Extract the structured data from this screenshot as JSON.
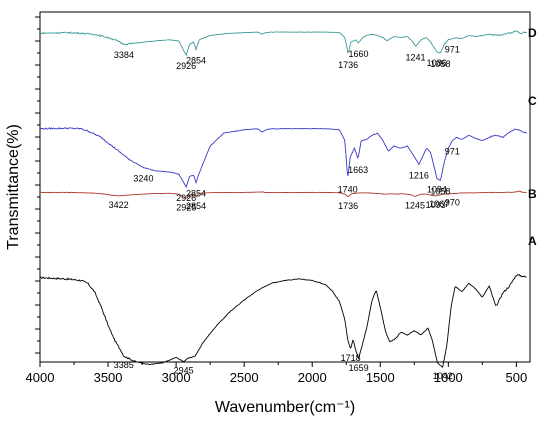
{
  "chart_data": {
    "type": "line",
    "xlabel": "Wavenumber(cm⁻¹)",
    "ylabel": "Transmittance(%)",
    "xlim": [
      4000,
      400
    ],
    "x_reversed": true,
    "x_ticks": [
      4000,
      3500,
      3000,
      2500,
      2000,
      1500,
      1000,
      500
    ],
    "y_tick_labels": false,
    "grid": false,
    "series": [
      {
        "name": "A",
        "color": "#000000",
        "baseline": 0.0,
        "points": [
          [
            4000,
            0.66
          ],
          [
            3800,
            0.65
          ],
          [
            3700,
            0.64
          ],
          [
            3650,
            0.62
          ],
          [
            3600,
            0.56
          ],
          [
            3550,
            0.45
          ],
          [
            3500,
            0.32
          ],
          [
            3450,
            0.21
          ],
          [
            3400,
            0.13
          ],
          [
            3385,
            0.1
          ],
          [
            3300,
            0.06
          ],
          [
            3200,
            0.04
          ],
          [
            3100,
            0.05
          ],
          [
            3000,
            0.09
          ],
          [
            2945,
            0.06
          ],
          [
            2920,
            0.08
          ],
          [
            2860,
            0.1
          ],
          [
            2800,
            0.2
          ],
          [
            2700,
            0.32
          ],
          [
            2600,
            0.42
          ],
          [
            2500,
            0.5
          ],
          [
            2400,
            0.57
          ],
          [
            2300,
            0.62
          ],
          [
            2200,
            0.64
          ],
          [
            2100,
            0.65
          ],
          [
            2000,
            0.64
          ],
          [
            1900,
            0.61
          ],
          [
            1850,
            0.56
          ],
          [
            1800,
            0.49
          ],
          [
            1760,
            0.36
          ],
          [
            1740,
            0.22
          ],
          [
            1718,
            0.15
          ],
          [
            1700,
            0.22
          ],
          [
            1680,
            0.14
          ],
          [
            1659,
            0.08
          ],
          [
            1640,
            0.15
          ],
          [
            1600,
            0.3
          ],
          [
            1560,
            0.5
          ],
          [
            1530,
            0.57
          ],
          [
            1500,
            0.45
          ],
          [
            1460,
            0.27
          ],
          [
            1430,
            0.2
          ],
          [
            1380,
            0.23
          ],
          [
            1350,
            0.27
          ],
          [
            1300,
            0.25
          ],
          [
            1250,
            0.28
          ],
          [
            1200,
            0.25
          ],
          [
            1150,
            0.3
          ],
          [
            1120,
            0.22
          ],
          [
            1080,
            0.05
          ],
          [
            1042,
            0.02
          ],
          [
            1010,
            0.18
          ],
          [
            980,
            0.45
          ],
          [
            950,
            0.6
          ],
          [
            900,
            0.56
          ],
          [
            850,
            0.62
          ],
          [
            800,
            0.58
          ],
          [
            750,
            0.52
          ],
          [
            700,
            0.6
          ],
          [
            650,
            0.45
          ],
          [
            600,
            0.55
          ],
          [
            550,
            0.6
          ],
          [
            500,
            0.68
          ],
          [
            450,
            0.67
          ],
          [
            420,
            0.66
          ]
        ],
        "peak_labels": [
          {
            "wn": "3385",
            "x": 3385
          },
          {
            "wn": "2945",
            "x": 2945
          },
          {
            "wn": "1718",
            "x": 1718
          },
          {
            "wn": "1659",
            "x": 1659
          },
          {
            "wn": "1042",
            "x": 1042
          }
        ]
      },
      {
        "name": "B",
        "color": "#b03a2e",
        "baseline": 0.0,
        "points": [
          [
            4000,
            0.9
          ],
          [
            3800,
            0.9
          ],
          [
            3650,
            0.89
          ],
          [
            3550,
            0.87
          ],
          [
            3480,
            0.84
          ],
          [
            3422,
            0.82
          ],
          [
            3350,
            0.84
          ],
          [
            3200,
            0.87
          ],
          [
            3050,
            0.88
          ],
          [
            2980,
            0.86
          ],
          [
            2925,
            0.76
          ],
          [
            2900,
            0.84
          ],
          [
            2870,
            0.86
          ],
          [
            2854,
            0.8
          ],
          [
            2830,
            0.88
          ],
          [
            2700,
            0.9
          ],
          [
            2500,
            0.9
          ],
          [
            2360,
            0.91
          ],
          [
            2340,
            0.895
          ],
          [
            2300,
            0.9
          ],
          [
            2100,
            0.9
          ],
          [
            1900,
            0.9
          ],
          [
            1800,
            0.89
          ],
          [
            1760,
            0.86
          ],
          [
            1736,
            0.8
          ],
          [
            1710,
            0.87
          ],
          [
            1650,
            0.89
          ],
          [
            1600,
            0.89
          ],
          [
            1540,
            0.88
          ],
          [
            1460,
            0.86
          ],
          [
            1420,
            0.87
          ],
          [
            1380,
            0.86
          ],
          [
            1340,
            0.87
          ],
          [
            1280,
            0.85
          ],
          [
            1245,
            0.81
          ],
          [
            1200,
            0.86
          ],
          [
            1160,
            0.86
          ],
          [
            1120,
            0.83
          ],
          [
            1093,
            0.82
          ],
          [
            1067,
            0.84
          ],
          [
            1040,
            0.86
          ],
          [
            1000,
            0.87
          ],
          [
            970,
            0.87
          ],
          [
            900,
            0.89
          ],
          [
            800,
            0.89
          ],
          [
            700,
            0.9
          ],
          [
            600,
            0.9
          ],
          [
            500,
            0.91
          ],
          [
            480,
            0.93
          ],
          [
            450,
            0.9
          ],
          [
            420,
            0.9
          ]
        ],
        "peak_labels": [
          {
            "wn": "3422",
            "x": 3422
          },
          {
            "wn": "2925",
            "x": 2925
          },
          {
            "wn": "2854",
            "x": 2854
          },
          {
            "wn": "1736",
            "x": 1736
          },
          {
            "wn": "1245",
            "x": 1245
          },
          {
            "wn": "1093",
            "x": 1093
          },
          {
            "wn": "1067",
            "x": 1067
          },
          {
            "wn": "970",
            "x": 970
          }
        ]
      },
      {
        "name": "C",
        "color": "#3838c8",
        "baseline": 0.0,
        "points": [
          [
            4000,
            0.66
          ],
          [
            3800,
            0.665
          ],
          [
            3700,
            0.66
          ],
          [
            3650,
            0.64
          ],
          [
            3550,
            0.58
          ],
          [
            3450,
            0.48
          ],
          [
            3350,
            0.38
          ],
          [
            3240,
            0.3
          ],
          [
            3150,
            0.27
          ],
          [
            3050,
            0.26
          ],
          [
            2980,
            0.24
          ],
          [
            2926,
            0.12
          ],
          [
            2900,
            0.22
          ],
          [
            2870,
            0.23
          ],
          [
            2854,
            0.16
          ],
          [
            2830,
            0.25
          ],
          [
            2750,
            0.5
          ],
          [
            2650,
            0.62
          ],
          [
            2500,
            0.65
          ],
          [
            2400,
            0.66
          ],
          [
            2370,
            0.63
          ],
          [
            2340,
            0.65
          ],
          [
            2300,
            0.66
          ],
          [
            2100,
            0.66
          ],
          [
            1900,
            0.66
          ],
          [
            1800,
            0.65
          ],
          [
            1760,
            0.55
          ],
          [
            1740,
            0.2
          ],
          [
            1720,
            0.4
          ],
          [
            1690,
            0.48
          ],
          [
            1663,
            0.38
          ],
          [
            1640,
            0.55
          ],
          [
            1600,
            0.56
          ],
          [
            1560,
            0.6
          ],
          [
            1520,
            0.62
          ],
          [
            1480,
            0.55
          ],
          [
            1440,
            0.45
          ],
          [
            1400,
            0.5
          ],
          [
            1350,
            0.48
          ],
          [
            1300,
            0.5
          ],
          [
            1250,
            0.4
          ],
          [
            1216,
            0.33
          ],
          [
            1190,
            0.4
          ],
          [
            1160,
            0.48
          ],
          [
            1130,
            0.44
          ],
          [
            1084,
            0.2
          ],
          [
            1058,
            0.18
          ],
          [
            1030,
            0.35
          ],
          [
            1000,
            0.48
          ],
          [
            971,
            0.55
          ],
          [
            940,
            0.58
          ],
          [
            900,
            0.56
          ],
          [
            850,
            0.6
          ],
          [
            800,
            0.57
          ],
          [
            750,
            0.55
          ],
          [
            700,
            0.58
          ],
          [
            650,
            0.6
          ],
          [
            600,
            0.58
          ],
          [
            550,
            0.63
          ],
          [
            500,
            0.66
          ],
          [
            450,
            0.63
          ],
          [
            420,
            0.62
          ]
        ],
        "peak_labels": [
          {
            "wn": "3240",
            "x": 3240
          },
          {
            "wn": "2926",
            "x": 2926
          },
          {
            "wn": "2854",
            "x": 2854
          },
          {
            "wn": "1740",
            "x": 1740
          },
          {
            "wn": "1663",
            "x": 1663
          },
          {
            "wn": "1216",
            "x": 1216
          },
          {
            "wn": "1084",
            "x": 1084
          },
          {
            "wn": "1058",
            "x": 1058
          },
          {
            "wn": "971",
            "x": 971
          }
        ]
      },
      {
        "name": "D",
        "color": "#3a9a96",
        "baseline": 0.0,
        "points": [
          [
            4000,
            0.88
          ],
          [
            3800,
            0.885
          ],
          [
            3700,
            0.88
          ],
          [
            3600,
            0.87
          ],
          [
            3500,
            0.84
          ],
          [
            3450,
            0.82
          ],
          [
            3384,
            0.78
          ],
          [
            3300,
            0.79
          ],
          [
            3150,
            0.81
          ],
          [
            3050,
            0.82
          ],
          [
            2980,
            0.81
          ],
          [
            2926,
            0.68
          ],
          [
            2900,
            0.78
          ],
          [
            2870,
            0.8
          ],
          [
            2854,
            0.73
          ],
          [
            2830,
            0.82
          ],
          [
            2750,
            0.86
          ],
          [
            2600,
            0.88
          ],
          [
            2500,
            0.885
          ],
          [
            2400,
            0.89
          ],
          [
            2370,
            0.87
          ],
          [
            2340,
            0.885
          ],
          [
            2300,
            0.89
          ],
          [
            2100,
            0.89
          ],
          [
            1900,
            0.89
          ],
          [
            1800,
            0.885
          ],
          [
            1760,
            0.84
          ],
          [
            1736,
            0.69
          ],
          [
            1715,
            0.8
          ],
          [
            1680,
            0.82
          ],
          [
            1660,
            0.79
          ],
          [
            1630,
            0.84
          ],
          [
            1600,
            0.86
          ],
          [
            1560,
            0.87
          ],
          [
            1520,
            0.86
          ],
          [
            1480,
            0.84
          ],
          [
            1450,
            0.81
          ],
          [
            1400,
            0.85
          ],
          [
            1350,
            0.84
          ],
          [
            1300,
            0.85
          ],
          [
            1260,
            0.8
          ],
          [
            1241,
            0.76
          ],
          [
            1200,
            0.82
          ],
          [
            1160,
            0.84
          ],
          [
            1130,
            0.8
          ],
          [
            1086,
            0.71
          ],
          [
            1058,
            0.7
          ],
          [
            1030,
            0.78
          ],
          [
            1000,
            0.82
          ],
          [
            971,
            0.83
          ],
          [
            940,
            0.84
          ],
          [
            900,
            0.83
          ],
          [
            850,
            0.86
          ],
          [
            800,
            0.85
          ],
          [
            750,
            0.86
          ],
          [
            700,
            0.87
          ],
          [
            650,
            0.86
          ],
          [
            600,
            0.87
          ],
          [
            550,
            0.88
          ],
          [
            500,
            0.9
          ],
          [
            470,
            0.88
          ],
          [
            440,
            0.89
          ],
          [
            420,
            0.88
          ]
        ],
        "peak_labels": [
          {
            "wn": "3384",
            "x": 3384
          },
          {
            "wn": "2926",
            "x": 2926
          },
          {
            "wn": "2854",
            "x": 2854
          },
          {
            "wn": "1736",
            "x": 1736
          },
          {
            "wn": "1660",
            "x": 1660
          },
          {
            "wn": "1241",
            "x": 1241
          },
          {
            "wn": "1086",
            "x": 1086
          },
          {
            "wn": "1058",
            "x": 1058
          },
          {
            "wn": "971",
            "x": 971
          }
        ]
      }
    ]
  }
}
